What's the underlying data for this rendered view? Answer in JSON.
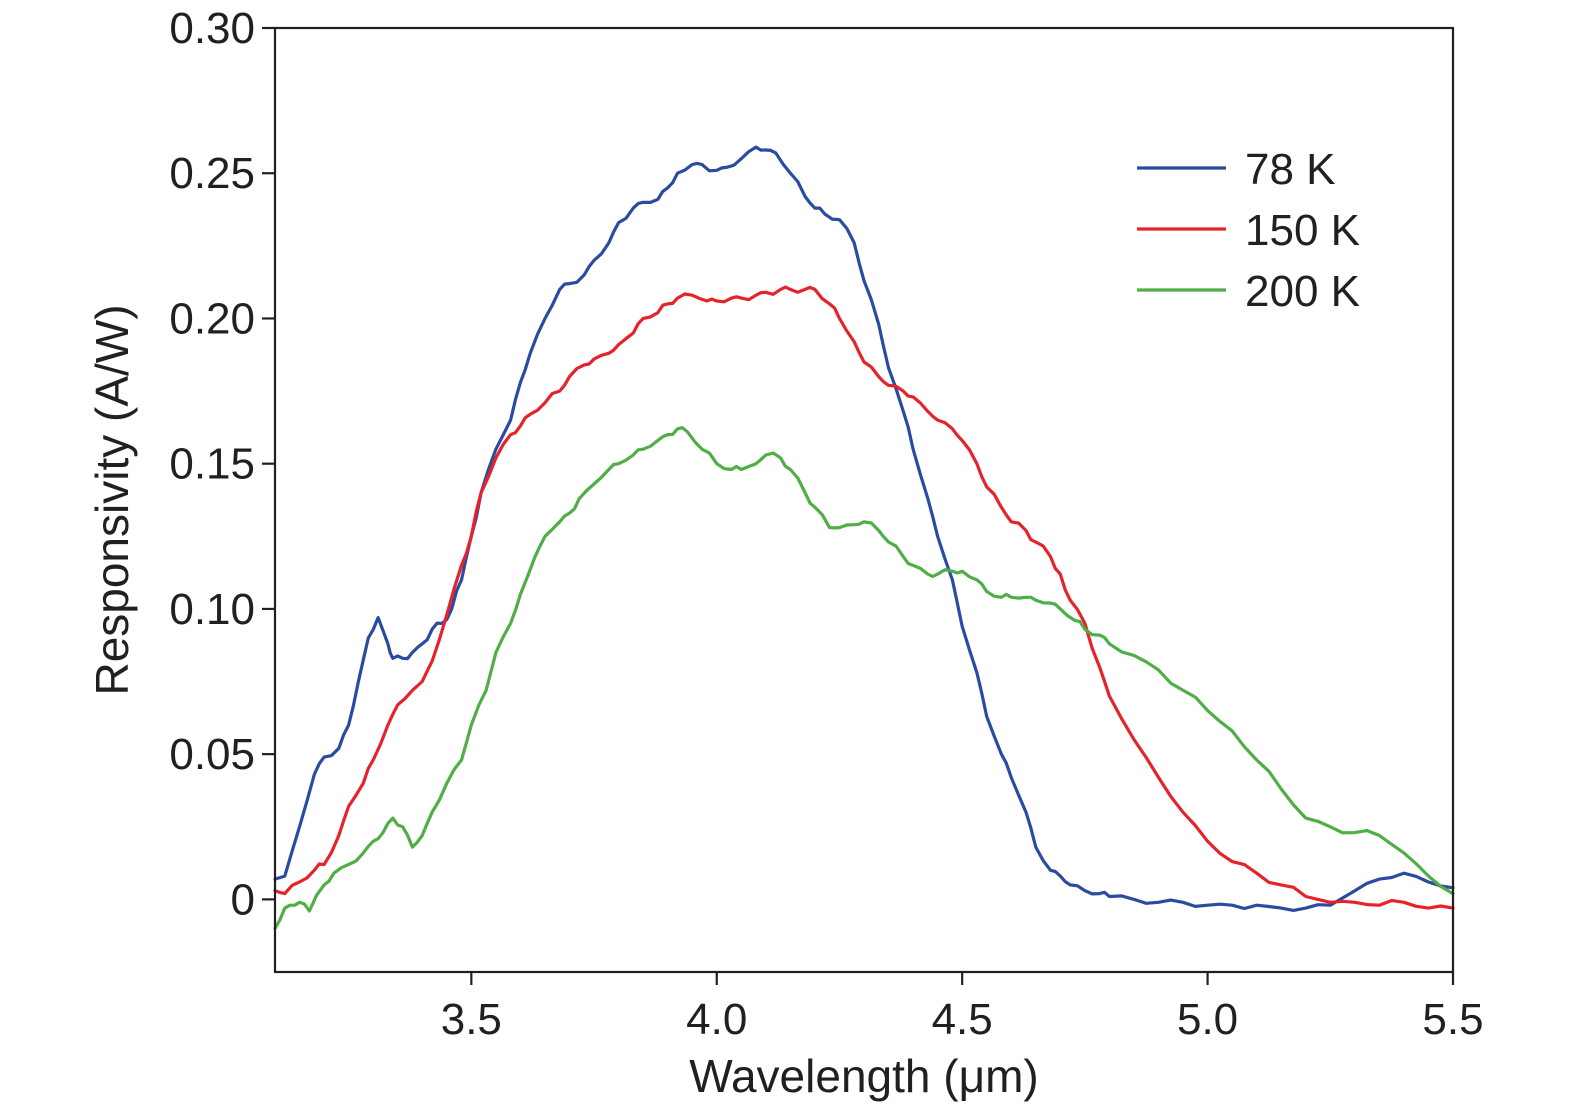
{
  "chart_data": {
    "type": "line",
    "title": "",
    "xlabel": "Wavelength (μm)",
    "ylabel": "Responsivity (A/W)",
    "xlim": [
      3.1,
      5.5
    ],
    "ylim": [
      -0.025,
      0.3
    ],
    "xticks": [
      3.5,
      4.0,
      4.5,
      5.0,
      5.5
    ],
    "xtick_labels": [
      "3.5",
      "4.0",
      "4.5",
      "5.0",
      "5.5"
    ],
    "yticks": [
      0,
      0.05,
      0.1,
      0.15,
      0.2,
      0.25,
      0.3
    ],
    "ytick_labels": [
      "0",
      "0.05",
      "0.10",
      "0.15",
      "0.20",
      "0.25",
      "0.30"
    ],
    "grid": false,
    "legend_position": "top-right",
    "series": [
      {
        "name": "78 K",
        "color": "#2a4ca0",
        "x": [
          3.1,
          3.12,
          3.15,
          3.18,
          3.2,
          3.23,
          3.25,
          3.27,
          3.29,
          3.31,
          3.33,
          3.34,
          3.36,
          3.38,
          3.4,
          3.42,
          3.44,
          3.46,
          3.48,
          3.5,
          3.52,
          3.55,
          3.58,
          3.6,
          3.62,
          3.65,
          3.68,
          3.7,
          3.73,
          3.75,
          3.78,
          3.8,
          3.83,
          3.85,
          3.88,
          3.9,
          3.92,
          3.95,
          3.97,
          4.0,
          4.02,
          4.05,
          4.08,
          4.1,
          4.12,
          4.15,
          4.18,
          4.2,
          4.22,
          4.25,
          4.28,
          4.3,
          4.33,
          4.35,
          4.38,
          4.4,
          4.43,
          4.45,
          4.48,
          4.5,
          4.53,
          4.55,
          4.58,
          4.6,
          4.63,
          4.65,
          4.68,
          4.7,
          4.72,
          4.75,
          4.78,
          4.8,
          4.85,
          4.9,
          4.95,
          5.0,
          5.05,
          5.1,
          5.15,
          5.2,
          5.25,
          5.3,
          5.35,
          5.4,
          5.45,
          5.5
        ],
        "y": [
          0.007,
          0.008,
          0.025,
          0.043,
          0.049,
          0.052,
          0.06,
          0.075,
          0.09,
          0.097,
          0.088,
          0.083,
          0.083,
          0.085,
          0.088,
          0.093,
          0.095,
          0.1,
          0.11,
          0.125,
          0.14,
          0.155,
          0.165,
          0.178,
          0.188,
          0.2,
          0.21,
          0.212,
          0.215,
          0.22,
          0.226,
          0.233,
          0.238,
          0.24,
          0.241,
          0.245,
          0.25,
          0.253,
          0.253,
          0.251,
          0.252,
          0.255,
          0.259,
          0.258,
          0.257,
          0.25,
          0.242,
          0.238,
          0.236,
          0.234,
          0.226,
          0.213,
          0.198,
          0.183,
          0.168,
          0.155,
          0.138,
          0.125,
          0.11,
          0.094,
          0.078,
          0.063,
          0.05,
          0.042,
          0.03,
          0.018,
          0.01,
          0.008,
          0.005,
          0.003,
          0.002,
          0.001,
          0.0,
          -0.001,
          -0.001,
          -0.002,
          -0.002,
          -0.002,
          -0.003,
          -0.003,
          -0.002,
          0.003,
          0.007,
          0.009,
          0.006,
          0.004
        ]
      },
      {
        "name": "150 K",
        "color": "#e5232a",
        "x": [
          3.1,
          3.12,
          3.15,
          3.18,
          3.2,
          3.23,
          3.25,
          3.28,
          3.3,
          3.33,
          3.35,
          3.38,
          3.4,
          3.42,
          3.45,
          3.48,
          3.5,
          3.52,
          3.55,
          3.58,
          3.6,
          3.62,
          3.65,
          3.68,
          3.7,
          3.73,
          3.75,
          3.78,
          3.8,
          3.83,
          3.85,
          3.88,
          3.9,
          3.92,
          3.95,
          3.98,
          4.0,
          4.03,
          4.05,
          4.08,
          4.1,
          4.13,
          4.15,
          4.18,
          4.2,
          4.23,
          4.25,
          4.28,
          4.3,
          4.33,
          4.35,
          4.38,
          4.4,
          4.43,
          4.45,
          4.48,
          4.5,
          4.53,
          4.55,
          4.58,
          4.6,
          4.63,
          4.65,
          4.68,
          4.7,
          4.72,
          4.75,
          4.78,
          4.8,
          4.85,
          4.9,
          4.95,
          5.0,
          5.05,
          5.1,
          5.15,
          5.2,
          5.25,
          5.3,
          5.35,
          5.4,
          5.45,
          5.5
        ],
        "y": [
          0.003,
          0.002,
          0.006,
          0.01,
          0.012,
          0.022,
          0.032,
          0.04,
          0.048,
          0.06,
          0.067,
          0.072,
          0.075,
          0.082,
          0.098,
          0.115,
          0.125,
          0.14,
          0.152,
          0.16,
          0.163,
          0.167,
          0.171,
          0.175,
          0.18,
          0.184,
          0.186,
          0.188,
          0.191,
          0.195,
          0.2,
          0.202,
          0.205,
          0.207,
          0.208,
          0.206,
          0.206,
          0.207,
          0.207,
          0.208,
          0.209,
          0.21,
          0.21,
          0.21,
          0.21,
          0.205,
          0.2,
          0.192,
          0.185,
          0.18,
          0.177,
          0.175,
          0.173,
          0.168,
          0.165,
          0.162,
          0.158,
          0.15,
          0.142,
          0.135,
          0.13,
          0.127,
          0.123,
          0.118,
          0.112,
          0.103,
          0.095,
          0.08,
          0.07,
          0.055,
          0.042,
          0.03,
          0.02,
          0.013,
          0.009,
          0.005,
          0.001,
          -0.001,
          -0.001,
          -0.002,
          -0.001,
          -0.003,
          -0.003
        ]
      },
      {
        "name": "200 K",
        "color": "#4fae45",
        "x": [
          3.1,
          3.12,
          3.14,
          3.15,
          3.17,
          3.2,
          3.22,
          3.25,
          3.28,
          3.3,
          3.32,
          3.34,
          3.36,
          3.38,
          3.4,
          3.42,
          3.45,
          3.48,
          3.5,
          3.53,
          3.55,
          3.58,
          3.6,
          3.63,
          3.65,
          3.68,
          3.7,
          3.72,
          3.75,
          3.78,
          3.8,
          3.83,
          3.85,
          3.88,
          3.9,
          3.92,
          3.94,
          3.97,
          4.0,
          4.03,
          4.05,
          4.08,
          4.1,
          4.13,
          4.15,
          4.18,
          4.2,
          4.23,
          4.25,
          4.28,
          4.3,
          4.33,
          4.35,
          4.38,
          4.4,
          4.43,
          4.45,
          4.48,
          4.5,
          4.53,
          4.55,
          4.58,
          4.6,
          4.63,
          4.65,
          4.68,
          4.7,
          4.73,
          4.75,
          4.78,
          4.8,
          4.85,
          4.9,
          4.95,
          5.0,
          5.05,
          5.1,
          5.15,
          5.2,
          5.25,
          5.3,
          5.35,
          5.4,
          5.45,
          5.5
        ],
        "y": [
          -0.01,
          -0.003,
          -0.002,
          -0.001,
          -0.004,
          0.005,
          0.009,
          0.012,
          0.016,
          0.02,
          0.023,
          0.028,
          0.025,
          0.018,
          0.022,
          0.03,
          0.04,
          0.048,
          0.06,
          0.072,
          0.085,
          0.095,
          0.105,
          0.118,
          0.125,
          0.13,
          0.133,
          0.138,
          0.143,
          0.148,
          0.15,
          0.153,
          0.155,
          0.158,
          0.16,
          0.162,
          0.161,
          0.155,
          0.15,
          0.148,
          0.148,
          0.15,
          0.153,
          0.152,
          0.148,
          0.14,
          0.135,
          0.128,
          0.128,
          0.129,
          0.13,
          0.127,
          0.123,
          0.118,
          0.115,
          0.112,
          0.112,
          0.113,
          0.113,
          0.11,
          0.106,
          0.104,
          0.104,
          0.104,
          0.103,
          0.102,
          0.1,
          0.096,
          0.093,
          0.091,
          0.088,
          0.084,
          0.079,
          0.072,
          0.065,
          0.058,
          0.048,
          0.038,
          0.028,
          0.025,
          0.023,
          0.022,
          0.016,
          0.008,
          0.002
        ]
      }
    ]
  }
}
